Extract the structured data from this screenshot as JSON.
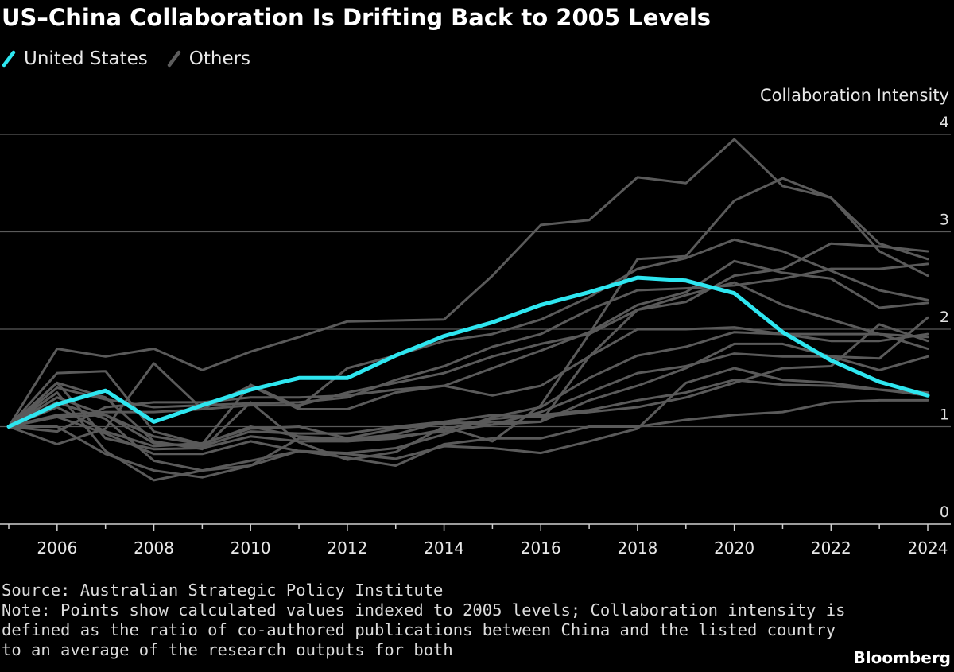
{
  "header": {
    "title": "US–China Collaboration Is Drifting Back to 2005 Levels"
  },
  "legend": [
    {
      "label": "United States",
      "color": "#2ee6f0",
      "icon": "slash-line-icon"
    },
    {
      "label": "Others",
      "color": "#5c5c5c",
      "icon": "slash-line-icon"
    }
  ],
  "footer": {
    "source": "Source: Australian Strategic Policy Institute",
    "note": "Note: Points show calculated values indexed to 2005 levels; Collaboration intensity is defined as the ratio of co-authored publications between China and the listed country to an average of the research outputs for both",
    "brand": "Bloomberg"
  },
  "chart_data": {
    "type": "line",
    "title": "US–China Collaboration Is Drifting Back to 2005 Levels",
    "ylabel": "Collaboration Intensity",
    "xlabel": "",
    "x": [
      2005,
      2006,
      2007,
      2008,
      2009,
      2010,
      2011,
      2012,
      2013,
      2014,
      2015,
      2016,
      2017,
      2018,
      2019,
      2020,
      2021,
      2022,
      2023,
      2024
    ],
    "xticks": [
      2006,
      2008,
      2010,
      2012,
      2014,
      2016,
      2018,
      2020,
      2022,
      2024
    ],
    "yticks": [
      0,
      1,
      2,
      3,
      4
    ],
    "ylim": [
      0,
      4
    ],
    "grid": true,
    "y_axis_side": "right",
    "legend_position": "top-left",
    "highlight": {
      "name": "United States",
      "color": "#2ee6f0",
      "values": [
        1.0,
        1.23,
        1.37,
        1.05,
        1.22,
        1.38,
        1.5,
        1.5,
        1.73,
        1.93,
        2.07,
        2.25,
        2.38,
        2.53,
        2.5,
        2.37,
        1.97,
        1.68,
        1.46,
        1.32
      ]
    },
    "others_color": "#5a5a5a",
    "others": [
      [
        1.0,
        1.8,
        1.72,
        1.8,
        1.58,
        1.77,
        1.92,
        2.08,
        2.09,
        2.1,
        2.55,
        3.07,
        3.12,
        3.56,
        3.5,
        3.95,
        3.47,
        3.35,
        2.8,
        2.55
      ],
      [
        1.0,
        1.4,
        1.28,
        1.2,
        1.22,
        1.24,
        1.25,
        1.3,
        1.48,
        1.62,
        1.82,
        1.95,
        2.2,
        2.4,
        2.42,
        2.45,
        2.52,
        2.62,
        2.62,
        2.67
      ],
      [
        1.0,
        1.45,
        1.3,
        0.85,
        0.77,
        1.25,
        0.84,
        0.66,
        0.74,
        1.0,
        0.85,
        1.22,
        1.95,
        2.72,
        2.75,
        3.32,
        3.55,
        3.35,
        2.88,
        2.72
      ],
      [
        1.0,
        1.55,
        1.57,
        0.95,
        0.82,
        1.43,
        1.2,
        1.6,
        1.73,
        1.88,
        1.95,
        2.1,
        2.33,
        2.62,
        2.73,
        2.92,
        2.8,
        2.6,
        2.4,
        2.3
      ],
      [
        1.0,
        1.3,
        1.12,
        0.9,
        0.82,
        1.0,
        0.9,
        0.87,
        0.92,
        1.05,
        1.12,
        1.1,
        1.15,
        1.2,
        1.3,
        1.45,
        1.6,
        1.62,
        2.05,
        1.88
      ],
      [
        1.0,
        1.12,
        1.15,
        1.15,
        1.18,
        1.22,
        1.22,
        1.35,
        1.45,
        1.55,
        1.72,
        1.85,
        1.95,
        2.2,
        2.28,
        2.55,
        2.62,
        2.88,
        2.85,
        2.8
      ],
      [
        1.0,
        0.95,
        1.2,
        1.25,
        1.25,
        1.3,
        1.3,
        1.32,
        1.38,
        1.42,
        1.6,
        1.78,
        1.97,
        2.25,
        2.38,
        2.7,
        2.58,
        2.52,
        2.22,
        2.27
      ],
      [
        1.0,
        1.2,
        0.95,
        0.8,
        0.83,
        0.98,
        1.0,
        0.88,
        0.98,
        1.03,
        1.05,
        1.05,
        1.27,
        1.42,
        1.6,
        1.85,
        1.85,
        1.72,
        1.58,
        1.72
      ],
      [
        1.0,
        1.45,
        0.88,
        0.77,
        0.78,
        0.9,
        0.85,
        0.85,
        0.88,
        0.97,
        1.08,
        1.12,
        1.17,
        1.27,
        1.35,
        1.48,
        1.43,
        1.42,
        1.38,
        1.32
      ],
      [
        1.0,
        1.1,
        0.93,
        0.72,
        0.72,
        0.85,
        0.75,
        0.72,
        0.67,
        0.8,
        0.78,
        0.73,
        0.85,
        0.98,
        1.45,
        1.6,
        1.48,
        1.45,
        1.38,
        1.35
      ],
      [
        1.0,
        1.25,
        1.08,
        0.65,
        0.55,
        0.6,
        0.75,
        0.68,
        0.6,
        0.82,
        0.88,
        0.88,
        1.0,
        1.0,
        1.07,
        1.12,
        1.15,
        1.25,
        1.27,
        1.27
      ],
      [
        1.0,
        0.82,
        0.98,
        1.65,
        1.18,
        1.42,
        1.18,
        1.18,
        1.35,
        1.42,
        1.32,
        1.42,
        1.72,
        2.2,
        2.35,
        2.48,
        2.25,
        2.1,
        1.95,
        1.92
      ],
      [
        1.0,
        1.1,
        1.12,
        0.83,
        0.8,
        0.95,
        0.93,
        0.93,
        1.0,
        1.05,
        1.02,
        1.05,
        1.72,
        2.0,
        2.0,
        2.02,
        1.95,
        1.95,
        1.95,
        1.8
      ],
      [
        1.0,
        1.35,
        0.75,
        0.45,
        0.55,
        0.65,
        0.75,
        0.73,
        0.78,
        0.92,
        1.1,
        1.2,
        1.5,
        1.73,
        1.82,
        1.97,
        1.95,
        1.88,
        1.88,
        1.95
      ],
      [
        1.0,
        1.0,
        0.72,
        0.55,
        0.48,
        0.6,
        0.88,
        0.85,
        0.9,
        0.95,
        1.02,
        1.15,
        1.35,
        1.55,
        1.62,
        1.75,
        1.72,
        1.72,
        1.7,
        2.12
      ]
    ]
  }
}
